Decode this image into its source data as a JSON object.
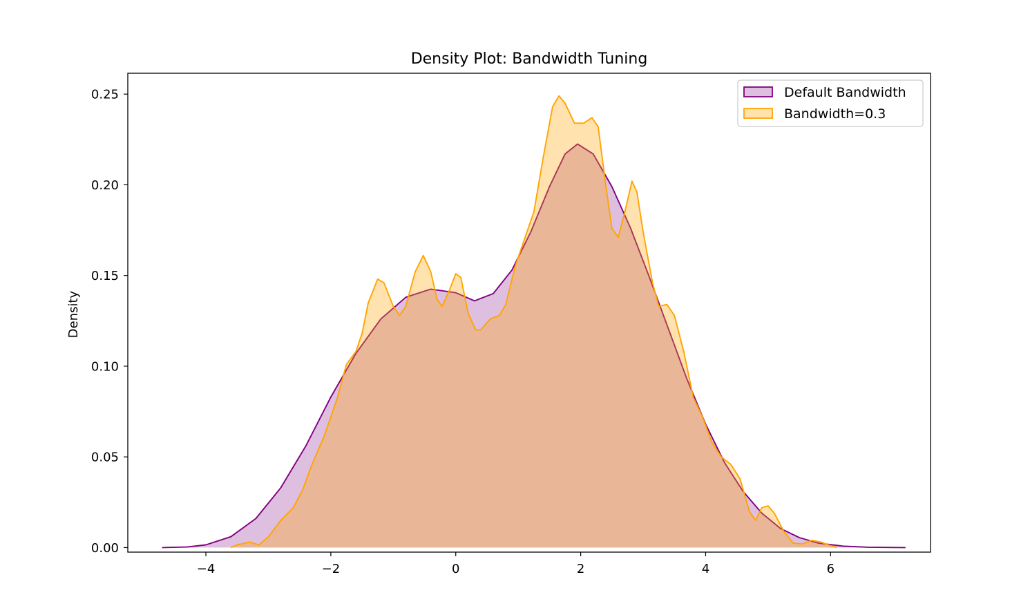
{
  "chart_data": {
    "type": "area",
    "title": "Density Plot: Bandwidth Tuning",
    "xlabel": "",
    "ylabel": "Density",
    "xlim": [
      -5.25,
      7.6
    ],
    "ylim": [
      -0.0025,
      0.2615
    ],
    "x_ticks": [
      {
        "value": -4,
        "label": "−4"
      },
      {
        "value": -2,
        "label": "−2"
      },
      {
        "value": 0,
        "label": "0"
      },
      {
        "value": 2,
        "label": "2"
      },
      {
        "value": 4,
        "label": "4"
      },
      {
        "value": 6,
        "label": "6"
      }
    ],
    "y_ticks": [
      {
        "value": 0.0,
        "label": "0.00"
      },
      {
        "value": 0.05,
        "label": "0.05"
      },
      {
        "value": 0.1,
        "label": "0.10"
      },
      {
        "value": 0.15,
        "label": "0.15"
      },
      {
        "value": 0.2,
        "label": "0.20"
      },
      {
        "value": 0.25,
        "label": "0.25"
      }
    ],
    "legend_position": "top-right",
    "grid": false,
    "series": [
      {
        "name": "Default Bandwidth",
        "line_color": "#800080",
        "fill_color": "#800080",
        "fill_opacity": 0.25,
        "points": [
          [
            -4.7,
            0.0
          ],
          [
            -4.3,
            0.0003
          ],
          [
            -4.0,
            0.0015
          ],
          [
            -3.6,
            0.006
          ],
          [
            -3.2,
            0.016
          ],
          [
            -2.8,
            0.033
          ],
          [
            -2.4,
            0.056
          ],
          [
            -2.0,
            0.083
          ],
          [
            -1.6,
            0.107
          ],
          [
            -1.2,
            0.126
          ],
          [
            -0.8,
            0.138
          ],
          [
            -0.4,
            0.1425
          ],
          [
            0.0,
            0.1405
          ],
          [
            0.3,
            0.136
          ],
          [
            0.6,
            0.14
          ],
          [
            0.9,
            0.153
          ],
          [
            1.2,
            0.174
          ],
          [
            1.5,
            0.199
          ],
          [
            1.75,
            0.217
          ],
          [
            1.95,
            0.2225
          ],
          [
            2.2,
            0.217
          ],
          [
            2.5,
            0.199
          ],
          [
            2.8,
            0.176
          ],
          [
            3.1,
            0.149
          ],
          [
            3.4,
            0.121
          ],
          [
            3.7,
            0.093
          ],
          [
            4.0,
            0.068
          ],
          [
            4.3,
            0.047
          ],
          [
            4.6,
            0.031
          ],
          [
            4.9,
            0.019
          ],
          [
            5.2,
            0.0105
          ],
          [
            5.5,
            0.0055
          ],
          [
            5.8,
            0.0025
          ],
          [
            6.2,
            0.0008
          ],
          [
            6.6,
            0.0002
          ],
          [
            7.2,
            0.0
          ]
        ]
      },
      {
        "name": "Bandwidth=0.3",
        "line_color": "#FFA500",
        "fill_color": "#FFA500",
        "fill_opacity": 0.32,
        "points": [
          [
            -3.6,
            0.0
          ],
          [
            -3.5,
            0.0015
          ],
          [
            -3.3,
            0.003
          ],
          [
            -3.15,
            0.0015
          ],
          [
            -3.0,
            0.006
          ],
          [
            -2.8,
            0.015
          ],
          [
            -2.6,
            0.022
          ],
          [
            -2.45,
            0.032
          ],
          [
            -2.3,
            0.046
          ],
          [
            -2.1,
            0.062
          ],
          [
            -1.9,
            0.082
          ],
          [
            -1.75,
            0.101
          ],
          [
            -1.6,
            0.108
          ],
          [
            -1.5,
            0.118
          ],
          [
            -1.4,
            0.135
          ],
          [
            -1.25,
            0.148
          ],
          [
            -1.15,
            0.146
          ],
          [
            -1.0,
            0.133
          ],
          [
            -0.9,
            0.128
          ],
          [
            -0.8,
            0.133
          ],
          [
            -0.65,
            0.152
          ],
          [
            -0.52,
            0.161
          ],
          [
            -0.4,
            0.152
          ],
          [
            -0.3,
            0.137
          ],
          [
            -0.22,
            0.133
          ],
          [
            -0.1,
            0.142
          ],
          [
            0.0,
            0.151
          ],
          [
            0.08,
            0.149
          ],
          [
            0.2,
            0.129
          ],
          [
            0.32,
            0.12
          ],
          [
            0.4,
            0.12
          ],
          [
            0.55,
            0.126
          ],
          [
            0.7,
            0.128
          ],
          [
            0.8,
            0.134
          ],
          [
            0.95,
            0.155
          ],
          [
            1.1,
            0.17
          ],
          [
            1.25,
            0.185
          ],
          [
            1.4,
            0.215
          ],
          [
            1.55,
            0.243
          ],
          [
            1.65,
            0.249
          ],
          [
            1.75,
            0.245
          ],
          [
            1.9,
            0.234
          ],
          [
            2.05,
            0.234
          ],
          [
            2.18,
            0.237
          ],
          [
            2.28,
            0.232
          ],
          [
            2.4,
            0.2
          ],
          [
            2.5,
            0.176
          ],
          [
            2.6,
            0.171
          ],
          [
            2.7,
            0.184
          ],
          [
            2.82,
            0.202
          ],
          [
            2.9,
            0.196
          ],
          [
            3.0,
            0.174
          ],
          [
            3.15,
            0.146
          ],
          [
            3.25,
            0.133
          ],
          [
            3.38,
            0.134
          ],
          [
            3.5,
            0.128
          ],
          [
            3.65,
            0.108
          ],
          [
            3.8,
            0.083
          ],
          [
            3.95,
            0.072
          ],
          [
            4.1,
            0.058
          ],
          [
            4.25,
            0.05
          ],
          [
            4.4,
            0.046
          ],
          [
            4.55,
            0.038
          ],
          [
            4.7,
            0.02
          ],
          [
            4.8,
            0.015
          ],
          [
            4.9,
            0.022
          ],
          [
            5.0,
            0.023
          ],
          [
            5.1,
            0.019
          ],
          [
            5.25,
            0.009
          ],
          [
            5.4,
            0.0025
          ],
          [
            5.55,
            0.002
          ],
          [
            5.7,
            0.004
          ],
          [
            5.85,
            0.003
          ],
          [
            6.0,
            0.001
          ],
          [
            6.1,
            0.0
          ]
        ]
      }
    ]
  }
}
